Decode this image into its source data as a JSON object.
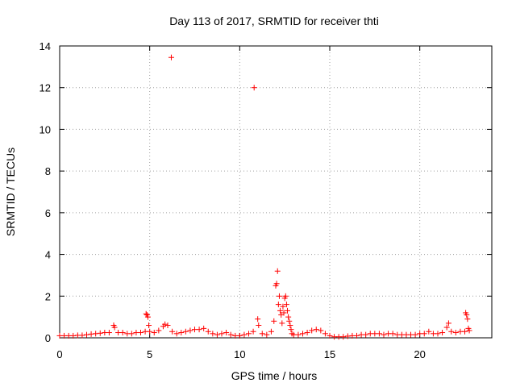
{
  "chart_data": {
    "type": "scatter",
    "title": "Day 113 of 2017, SRMTID for receiver thti",
    "xlabel": "GPS time / hours",
    "ylabel": "SRMTID / TECUs",
    "xlim": [
      0,
      24
    ],
    "ylim": [
      0,
      14
    ],
    "xticks": [
      0,
      5,
      10,
      15,
      20
    ],
    "yticks": [
      0,
      2,
      4,
      6,
      8,
      10,
      12,
      14
    ],
    "grid": true,
    "marker": "plus",
    "color": "#ff0000",
    "series": [
      {
        "x": [
          6.2,
          10.8
        ],
        "y": [
          13.45,
          12.0
        ]
      },
      {
        "x": [
          0.0,
          0.25,
          0.5,
          0.75,
          1.0,
          1.25,
          1.5,
          1.75,
          2.0,
          2.25,
          2.5,
          2.75,
          3.0,
          3.05,
          3.25,
          3.5,
          3.75,
          4.0,
          4.25,
          4.5,
          4.75,
          4.8,
          4.85,
          4.9,
          4.95,
          5.0,
          5.25,
          5.5,
          5.75,
          5.85,
          6.0,
          6.25,
          6.5,
          6.75,
          7.0,
          7.25,
          7.5,
          7.75,
          8.0,
          8.25,
          8.5,
          8.75,
          9.0,
          9.25,
          9.5,
          9.75,
          10.0,
          10.25,
          10.5,
          10.75,
          11.0,
          11.05,
          11.25,
          11.5,
          11.75,
          11.9,
          12.0,
          12.05,
          12.1,
          12.15,
          12.2,
          12.25,
          12.3,
          12.35,
          12.4,
          12.45,
          12.5,
          12.55,
          12.6,
          12.65,
          12.7,
          12.75,
          12.8,
          12.85,
          12.9,
          13.0,
          13.25,
          13.5,
          13.75,
          14.0,
          14.25,
          14.5,
          14.75,
          15.0,
          15.25,
          15.5,
          15.75,
          16.0,
          16.25,
          16.5,
          16.75,
          17.0,
          17.25,
          17.5,
          17.75,
          18.0,
          18.25,
          18.5,
          18.75,
          19.0,
          19.25,
          19.5,
          19.75,
          20.0,
          20.25,
          20.5,
          20.75,
          21.0,
          21.25,
          21.5,
          21.6,
          21.75,
          22.0,
          22.25,
          22.5,
          22.55,
          22.6,
          22.65,
          22.7,
          22.75
        ],
        "y": [
          0.1,
          0.1,
          0.1,
          0.1,
          0.12,
          0.12,
          0.15,
          0.18,
          0.2,
          0.22,
          0.25,
          0.25,
          0.6,
          0.5,
          0.25,
          0.25,
          0.2,
          0.2,
          0.25,
          0.25,
          0.3,
          1.15,
          1.1,
          1.0,
          0.6,
          0.3,
          0.25,
          0.35,
          0.55,
          0.65,
          0.6,
          0.3,
          0.2,
          0.25,
          0.3,
          0.35,
          0.4,
          0.4,
          0.45,
          0.3,
          0.2,
          0.15,
          0.2,
          0.25,
          0.15,
          0.1,
          0.1,
          0.15,
          0.2,
          0.3,
          0.9,
          0.6,
          0.2,
          0.15,
          0.3,
          0.8,
          2.5,
          2.6,
          3.2,
          1.6,
          2.0,
          1.3,
          1.1,
          0.7,
          1.5,
          1.2,
          1.9,
          2.0,
          1.6,
          1.3,
          1.0,
          0.8,
          0.6,
          0.4,
          0.2,
          0.15,
          0.15,
          0.2,
          0.25,
          0.35,
          0.4,
          0.35,
          0.2,
          0.1,
          0.05,
          0.05,
          0.05,
          0.08,
          0.1,
          0.1,
          0.15,
          0.15,
          0.2,
          0.2,
          0.2,
          0.15,
          0.2,
          0.2,
          0.15,
          0.15,
          0.15,
          0.15,
          0.15,
          0.2,
          0.2,
          0.3,
          0.2,
          0.2,
          0.25,
          0.5,
          0.7,
          0.3,
          0.25,
          0.3,
          0.3,
          1.2,
          1.1,
          0.9,
          0.45,
          0.35
        ]
      }
    ]
  }
}
